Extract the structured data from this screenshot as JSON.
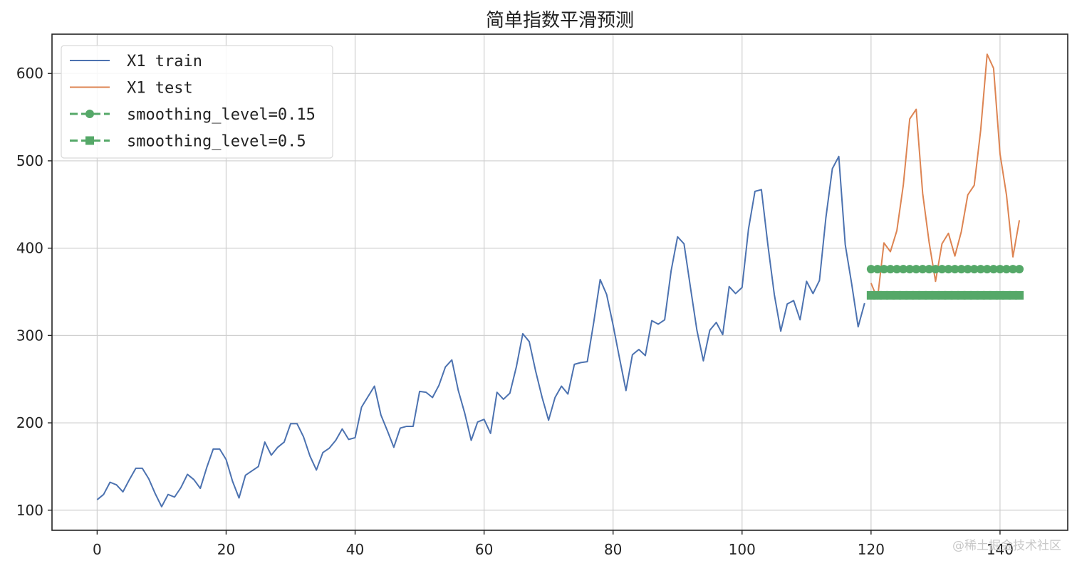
{
  "chart_data": {
    "type": "line",
    "title": "简单指数平滑预测",
    "xlabel": "",
    "ylabel": "",
    "xlim": [
      -7,
      150.5
    ],
    "ylim": [
      77,
      645
    ],
    "xticks": [
      0,
      20,
      40,
      60,
      80,
      100,
      120,
      140
    ],
    "yticks": [
      100,
      200,
      300,
      400,
      500,
      600
    ],
    "grid": true,
    "legend_position": "top-left",
    "series": [
      {
        "name": "X1 train",
        "color": "#4c72b0",
        "style": "solid",
        "x_start": 0,
        "values": [
          112,
          118,
          132,
          129,
          121,
          135,
          148,
          148,
          136,
          119,
          104,
          118,
          115,
          126,
          141,
          135,
          125,
          149,
          170,
          170,
          158,
          133,
          114,
          140,
          145,
          150,
          178,
          163,
          172,
          178,
          199,
          199,
          184,
          162,
          146,
          166,
          171,
          180,
          193,
          181,
          183,
          218,
          230,
          242,
          209,
          191,
          172,
          194,
          196,
          196,
          236,
          235,
          229,
          243,
          264,
          272,
          237,
          211,
          180,
          201,
          204,
          188,
          235,
          227,
          234,
          264,
          302,
          293,
          259,
          229,
          203,
          229,
          242,
          233,
          267,
          269,
          270,
          315,
          364,
          347,
          312,
          274,
          237,
          278,
          284,
          277,
          317,
          313,
          318,
          374,
          413,
          405,
          355,
          306,
          271,
          306,
          315,
          301,
          356,
          348,
          355,
          422,
          465,
          467,
          404,
          347,
          305,
          336,
          340,
          318,
          362,
          348,
          363,
          435,
          491,
          505,
          404,
          359,
          310,
          337
        ]
      },
      {
        "name": "X1 test",
        "color": "#dd8452",
        "style": "solid",
        "x_start": 120,
        "values": [
          360,
          342,
          406,
          396,
          420,
          472,
          548,
          559,
          463,
          407,
          362,
          405,
          417,
          391,
          419,
          461,
          472,
          535,
          622,
          606,
          508,
          461,
          390,
          432
        ]
      },
      {
        "name": "smoothing_level=0.15",
        "color": "#55a868",
        "style": "dashed",
        "marker": "circle",
        "x_start": 120,
        "values": [
          376,
          376,
          376,
          376,
          376,
          376,
          376,
          376,
          376,
          376,
          376,
          376,
          376,
          376,
          376,
          376,
          376,
          376,
          376,
          376,
          376,
          376,
          376,
          376
        ]
      },
      {
        "name": "smoothing_level=0.5",
        "color": "#55a868",
        "style": "dashed",
        "marker": "square",
        "x_start": 120,
        "values": [
          346,
          346,
          346,
          346,
          346,
          346,
          346,
          346,
          346,
          346,
          346,
          346,
          346,
          346,
          346,
          346,
          346,
          346,
          346,
          346,
          346,
          346,
          346,
          346
        ]
      }
    ]
  },
  "watermark": "@稀土掘金技术社区"
}
